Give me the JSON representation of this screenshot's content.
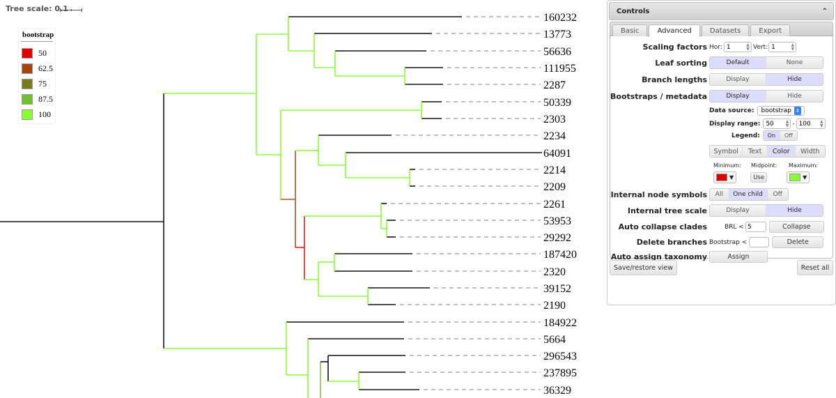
{
  "tree": {
    "scale_label": "Tree scale: 0.1",
    "leaves": [
      "160232",
      "13773",
      "56636",
      "111955",
      "2287",
      "50339",
      "2303",
      "2234",
      "64091",
      "2214",
      "2209",
      "2261",
      "53953",
      "29292",
      "187420",
      "2320",
      "39152",
      "2190",
      "184922",
      "5664",
      "296543",
      "237895",
      "36329"
    ],
    "colors": {
      "black": "#111111",
      "green100": "#88ff33",
      "green87": "#77cc33",
      "brown62": "#b84d20",
      "red50": "#e02020",
      "dash": "#aaaaaa"
    }
  },
  "legend": {
    "title": "bootstrap",
    "items": [
      {
        "label": "50",
        "color": "#e00000"
      },
      {
        "label": "62.5",
        "color": "#a64410"
      },
      {
        "label": "75",
        "color": "#7a7a20"
      },
      {
        "label": "87.5",
        "color": "#70c030"
      },
      {
        "label": "100",
        "color": "#88ff33"
      }
    ]
  },
  "controls": {
    "title": "Controls",
    "tabs": [
      {
        "label": "Basic",
        "active": false
      },
      {
        "label": "Advanced",
        "active": true
      },
      {
        "label": "Datasets",
        "active": false
      },
      {
        "label": "Export",
        "active": false
      }
    ],
    "scaling": {
      "label": "Scaling factors",
      "hor_label": "Hor:",
      "hor_value": "1",
      "vert_label": "Vert:",
      "vert_value": "1"
    },
    "leaf_sorting": {
      "label": "Leaf sorting",
      "options": [
        "Default",
        "None"
      ],
      "selected": "Default"
    },
    "branch_lengths": {
      "label": "Branch lengths",
      "options": [
        "Display",
        "Hide"
      ],
      "selected": "Hide"
    },
    "bootstraps": {
      "label": "Bootstraps / metadata",
      "options": [
        "Display",
        "Hide"
      ],
      "selected": "Display"
    },
    "data_source": {
      "label": "Data source:",
      "value": "bootstrap"
    },
    "display_range": {
      "label": "Display range:",
      "min": "50",
      "sep": "-",
      "max": "100"
    },
    "legend_toggle": {
      "label": "Legend:",
      "options": [
        "On",
        "Off"
      ],
      "selected": "On"
    },
    "style_mode": {
      "options": [
        "Symbol",
        "Text",
        "Color",
        "Width"
      ],
      "selected": "Color"
    },
    "color_range": {
      "min_label": "Minimum:",
      "min_color": "#e00000",
      "mid_label": "Midpoint:",
      "mid_button": "Use",
      "max_label": "Maximum:",
      "max_color": "#88ff33"
    },
    "internal_symbols": {
      "label": "Internal node symbols",
      "options": [
        "All",
        "One child",
        "Off"
      ],
      "selected": "One child"
    },
    "internal_scale": {
      "label": "Internal tree scale",
      "options": [
        "Display",
        "Hide"
      ],
      "selected": "Hide"
    },
    "auto_collapse": {
      "label": "Auto collapse clades",
      "prefix": "BRL <",
      "value": "5",
      "button": "Collapse"
    },
    "delete_branches": {
      "label": "Delete branches",
      "prefix": "Bootstrap <",
      "value": "",
      "button": "Delete"
    },
    "auto_taxonomy": {
      "label": "Auto assign taxonomy",
      "button": "Assign"
    },
    "save_button": "Save/restore view",
    "reset_button": "Reset all"
  }
}
